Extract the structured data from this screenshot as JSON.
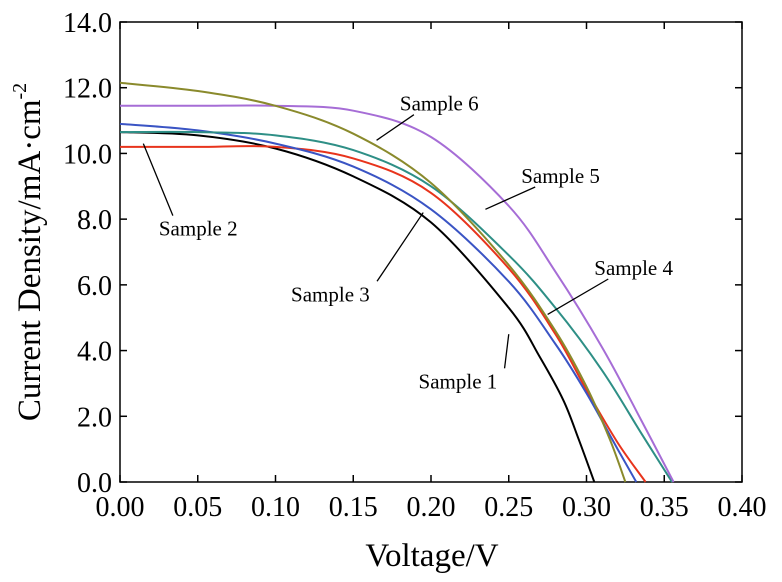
{
  "chart_data": {
    "type": "line",
    "xlabel": "Voltage/V",
    "ylabel": "Current Density/mA·cm",
    "ylabel_superscript": "-2",
    "xlim": [
      0.0,
      0.4
    ],
    "ylim": [
      0.0,
      14.0
    ],
    "x_ticks": [
      "0.00",
      "0.05",
      "0.10",
      "0.15",
      "0.20",
      "0.25",
      "0.30",
      "0.35",
      "0.40"
    ],
    "y_ticks": [
      "0.0",
      "2.0",
      "4.0",
      "6.0",
      "8.0",
      "10.0",
      "12.0",
      "14.0"
    ],
    "grid": false,
    "series": [
      {
        "name": "Sample 1",
        "color": "#000000",
        "points": [
          [
            0.0,
            10.65
          ],
          [
            0.05,
            10.55
          ],
          [
            0.1,
            10.15
          ],
          [
            0.15,
            9.3
          ],
          [
            0.2,
            7.9
          ],
          [
            0.25,
            5.3
          ],
          [
            0.27,
            3.8
          ],
          [
            0.285,
            2.5
          ],
          [
            0.295,
            1.3
          ],
          [
            0.305,
            0.0
          ]
        ]
      },
      {
        "name": "Sample 2",
        "color": "#e8341c",
        "points": [
          [
            0.0,
            10.2
          ],
          [
            0.05,
            10.2
          ],
          [
            0.1,
            10.2
          ],
          [
            0.15,
            9.85
          ],
          [
            0.2,
            8.8
          ],
          [
            0.25,
            6.5
          ],
          [
            0.28,
            4.5
          ],
          [
            0.3,
            2.8
          ],
          [
            0.32,
            1.2
          ],
          [
            0.338,
            0.0
          ]
        ]
      },
      {
        "name": "Sample 3",
        "color": "#3a54c4",
        "points": [
          [
            0.0,
            10.9
          ],
          [
            0.05,
            10.7
          ],
          [
            0.1,
            10.3
          ],
          [
            0.15,
            9.6
          ],
          [
            0.2,
            8.3
          ],
          [
            0.25,
            6.1
          ],
          [
            0.28,
            4.2
          ],
          [
            0.3,
            2.7
          ],
          [
            0.32,
            1.0
          ],
          [
            0.332,
            0.0
          ]
        ]
      },
      {
        "name": "Sample 4",
        "color": "#2e8f86",
        "points": [
          [
            0.0,
            10.65
          ],
          [
            0.05,
            10.65
          ],
          [
            0.1,
            10.55
          ],
          [
            0.15,
            10.1
          ],
          [
            0.2,
            9.0
          ],
          [
            0.25,
            6.9
          ],
          [
            0.28,
            5.3
          ],
          [
            0.31,
            3.4
          ],
          [
            0.335,
            1.5
          ],
          [
            0.355,
            0.0
          ]
        ]
      },
      {
        "name": "Sample 5",
        "color": "#a66dd6",
        "points": [
          [
            0.0,
            11.45
          ],
          [
            0.05,
            11.45
          ],
          [
            0.1,
            11.45
          ],
          [
            0.15,
            11.3
          ],
          [
            0.2,
            10.5
          ],
          [
            0.25,
            8.4
          ],
          [
            0.28,
            6.4
          ],
          [
            0.31,
            4.1
          ],
          [
            0.335,
            1.9
          ],
          [
            0.356,
            0.0
          ]
        ]
      },
      {
        "name": "Sample 6",
        "color": "#8a8a2c",
        "points": [
          [
            0.0,
            12.15
          ],
          [
            0.05,
            11.9
          ],
          [
            0.1,
            11.45
          ],
          [
            0.15,
            10.6
          ],
          [
            0.2,
            9.1
          ],
          [
            0.25,
            6.6
          ],
          [
            0.28,
            4.6
          ],
          [
            0.3,
            2.9
          ],
          [
            0.315,
            1.3
          ],
          [
            0.325,
            0.0
          ]
        ]
      }
    ],
    "annotations": [
      {
        "text": "Sample 6",
        "label_x": 0.18,
        "label_y": 11.3,
        "point_x": 0.165,
        "point_y": 10.4
      },
      {
        "text": "Sample 5",
        "label_x": 0.258,
        "label_y": 9.1,
        "point_x": 0.235,
        "point_y": 8.3
      },
      {
        "text": "Sample 2",
        "label_x": 0.025,
        "label_y": 7.5,
        "point_x": 0.015,
        "point_y": 10.3
      },
      {
        "text": "Sample 3",
        "label_x": 0.11,
        "label_y": 5.5,
        "point_x": 0.195,
        "point_y": 8.2
      },
      {
        "text": "Sample 4",
        "label_x": 0.305,
        "label_y": 6.3,
        "point_x": 0.275,
        "point_y": 5.1
      },
      {
        "text": "Sample 1",
        "label_x": 0.192,
        "label_y": 2.85,
        "point_x": 0.25,
        "point_y": 4.5
      }
    ]
  }
}
